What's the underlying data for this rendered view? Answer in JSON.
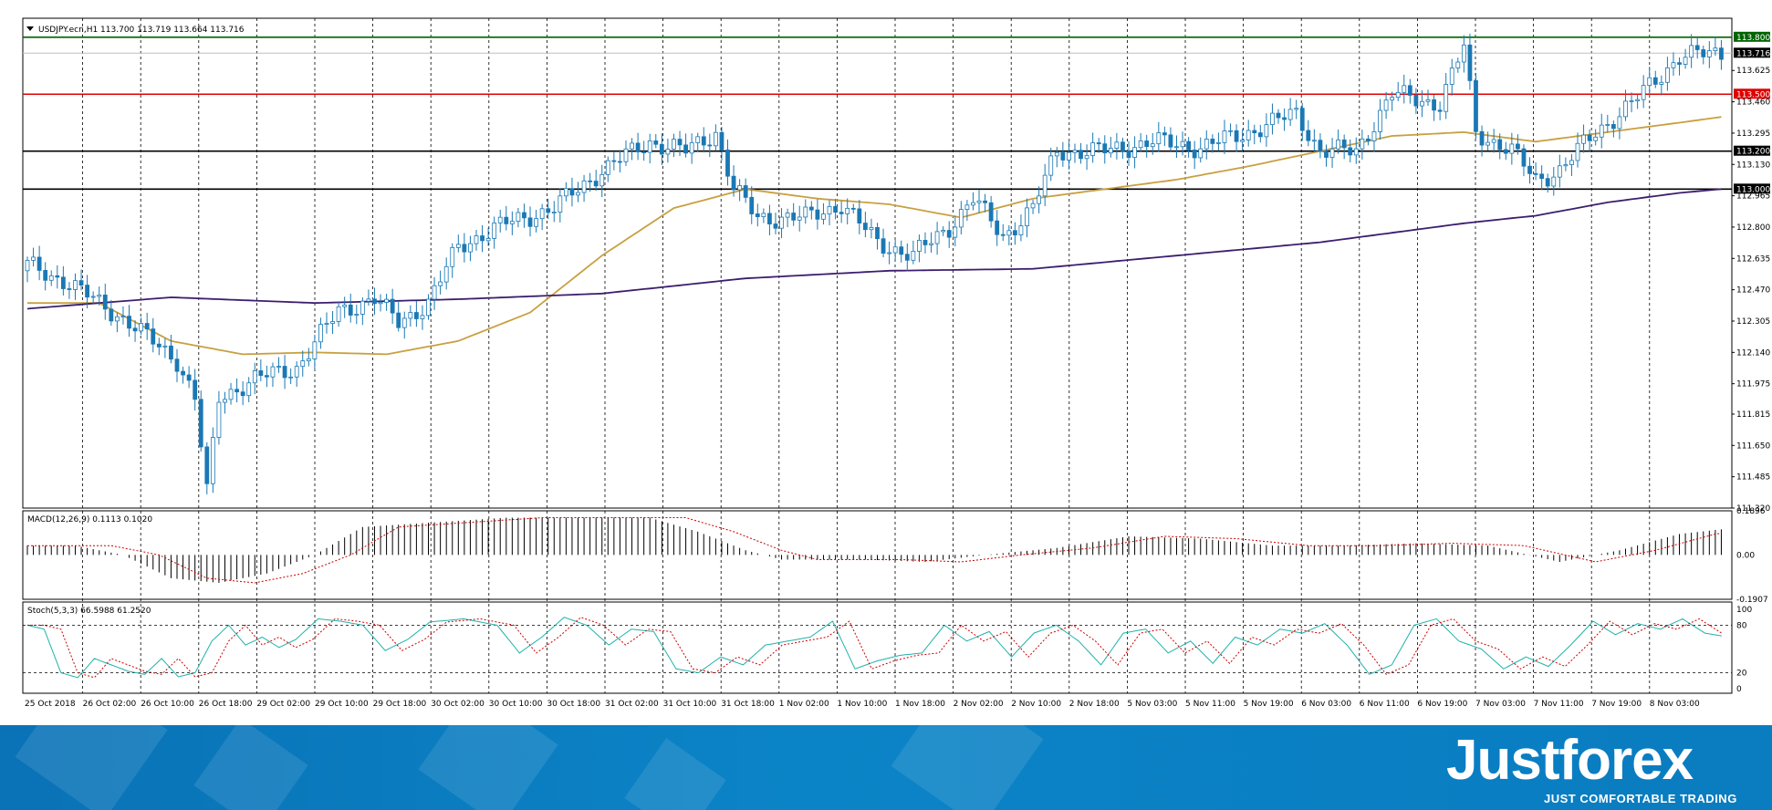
{
  "chart_data": [
    {
      "type": "candlestick",
      "title": "USDJPY.ecn,H1  113.700 113.719 113.664 113.716",
      "ylim": [
        111.32,
        113.9
      ],
      "price_ticks": [
        "113.625",
        "113.460",
        "113.295",
        "113.130",
        "112.965",
        "112.800",
        "112.635",
        "112.470",
        "112.305",
        "112.140",
        "111.975",
        "111.815",
        "111.650",
        "111.485",
        "111.320"
      ],
      "level_lines": [
        {
          "value": 113.8,
          "label": "113.800",
          "color": "#006400"
        },
        {
          "value": 113.716,
          "label": "113.716",
          "color": "#000000"
        },
        {
          "value": 113.5,
          "label": "113.500",
          "color": "#e00000"
        },
        {
          "value": 113.2,
          "label": "113.200",
          "color": "#000000"
        },
        {
          "value": 113.0,
          "label": "113.000",
          "color": "#000000"
        }
      ],
      "close_path": [
        [
          0,
          112.6
        ],
        [
          6,
          112.52
        ],
        [
          12,
          112.4
        ],
        [
          16,
          112.32
        ],
        [
          20,
          112.22
        ],
        [
          25,
          112.1
        ],
        [
          28,
          111.9
        ],
        [
          30,
          111.4
        ],
        [
          32,
          111.9
        ],
        [
          38,
          112.0
        ],
        [
          45,
          112.06
        ],
        [
          52,
          112.36
        ],
        [
          58,
          112.42
        ],
        [
          62,
          112.3
        ],
        [
          67,
          112.4
        ],
        [
          72,
          112.7
        ],
        [
          80,
          112.82
        ],
        [
          88,
          112.9
        ],
        [
          96,
          113.1
        ],
        [
          104,
          113.25
        ],
        [
          110,
          113.2
        ],
        [
          115,
          113.3
        ],
        [
          118,
          113.0
        ],
        [
          122,
          112.85
        ],
        [
          130,
          112.85
        ],
        [
          136,
          112.92
        ],
        [
          142,
          112.72
        ],
        [
          148,
          112.65
        ],
        [
          154,
          112.8
        ],
        [
          158,
          112.95
        ],
        [
          163,
          112.75
        ],
        [
          168,
          112.9
        ],
        [
          172,
          113.2
        ],
        [
          180,
          113.2
        ],
        [
          188,
          113.25
        ],
        [
          196,
          113.22
        ],
        [
          204,
          113.3
        ],
        [
          212,
          113.4
        ],
        [
          216,
          113.2
        ],
        [
          222,
          113.2
        ],
        [
          228,
          113.5
        ],
        [
          236,
          113.45
        ],
        [
          240,
          113.75
        ],
        [
          242,
          113.3
        ],
        [
          248,
          113.2
        ],
        [
          252,
          113.05
        ],
        [
          256,
          113.1
        ],
        [
          262,
          113.3
        ],
        [
          268,
          113.45
        ],
        [
          276,
          113.7
        ],
        [
          283,
          113.716
        ]
      ],
      "ma_fast": [
        [
          0,
          112.4
        ],
        [
          12,
          112.4
        ],
        [
          24,
          112.2
        ],
        [
          36,
          112.13
        ],
        [
          48,
          112.14
        ],
        [
          60,
          112.13
        ],
        [
          72,
          112.2
        ],
        [
          84,
          112.35
        ],
        [
          96,
          112.65
        ],
        [
          108,
          112.9
        ],
        [
          120,
          113.0
        ],
        [
          132,
          112.95
        ],
        [
          144,
          112.92
        ],
        [
          156,
          112.85
        ],
        [
          168,
          112.95
        ],
        [
          180,
          113.0
        ],
        [
          192,
          113.05
        ],
        [
          204,
          113.12
        ],
        [
          216,
          113.2
        ],
        [
          228,
          113.28
        ],
        [
          240,
          113.3
        ],
        [
          252,
          113.25
        ],
        [
          264,
          113.3
        ],
        [
          276,
          113.35
        ],
        [
          283,
          113.38
        ]
      ],
      "ma_slow": [
        [
          0,
          112.37
        ],
        [
          24,
          112.43
        ],
        [
          48,
          112.4
        ],
        [
          72,
          112.42
        ],
        [
          96,
          112.45
        ],
        [
          120,
          112.53
        ],
        [
          144,
          112.57
        ],
        [
          168,
          112.58
        ],
        [
          192,
          112.65
        ],
        [
          216,
          112.72
        ],
        [
          240,
          112.82
        ],
        [
          252,
          112.86
        ],
        [
          264,
          112.93
        ],
        [
          276,
          112.98
        ],
        [
          283,
          113.0
        ]
      ]
    },
    {
      "type": "bar",
      "title": "MACD(12,26,9) 0.1113 0.1020",
      "ylim": [
        -0.1907,
        0.1896
      ],
      "ticks": [
        "0.1896",
        "0.00",
        "-0.1907"
      ],
      "points": [
        [
          0,
          0.04
        ],
        [
          8,
          0.04
        ],
        [
          16,
          0.0
        ],
        [
          24,
          -0.1
        ],
        [
          32,
          -0.12
        ],
        [
          40,
          -0.08
        ],
        [
          48,
          0.0
        ],
        [
          56,
          0.12
        ],
        [
          68,
          0.14
        ],
        [
          80,
          0.16
        ],
        [
          96,
          0.16
        ],
        [
          104,
          0.16
        ],
        [
          112,
          0.1
        ],
        [
          120,
          0.02
        ],
        [
          126,
          -0.02
        ],
        [
          140,
          -0.02
        ],
        [
          150,
          -0.03
        ],
        [
          160,
          0.0
        ],
        [
          172,
          0.03
        ],
        [
          184,
          0.08
        ],
        [
          196,
          0.07
        ],
        [
          208,
          0.04
        ],
        [
          220,
          0.04
        ],
        [
          232,
          0.05
        ],
        [
          244,
          0.04
        ],
        [
          256,
          -0.03
        ],
        [
          266,
          0.02
        ],
        [
          276,
          0.09
        ],
        [
          283,
          0.11
        ]
      ]
    },
    {
      "type": "line",
      "title": "Stoch(5,3,3) 66.5988 61.2520",
      "ylim": [
        0,
        100
      ],
      "ticks": [
        "100",
        "80",
        "20",
        "0"
      ],
      "points": [
        [
          0,
          80
        ],
        [
          3,
          75
        ],
        [
          6,
          20
        ],
        [
          9,
          14
        ],
        [
          12,
          38
        ],
        [
          15,
          30
        ],
        [
          18,
          22
        ],
        [
          21,
          18
        ],
        [
          24,
          38
        ],
        [
          27,
          15
        ],
        [
          30,
          20
        ],
        [
          33,
          60
        ],
        [
          36,
          80
        ],
        [
          39,
          55
        ],
        [
          42,
          65
        ],
        [
          45,
          52
        ],
        [
          48,
          62
        ],
        [
          52,
          88
        ],
        [
          56,
          85
        ],
        [
          60,
          80
        ],
        [
          64,
          48
        ],
        [
          68,
          62
        ],
        [
          72,
          84
        ],
        [
          78,
          88
        ],
        [
          84,
          80
        ],
        [
          88,
          45
        ],
        [
          92,
          65
        ],
        [
          96,
          90
        ],
        [
          100,
          80
        ],
        [
          104,
          55
        ],
        [
          108,
          75
        ],
        [
          112,
          72
        ],
        [
          116,
          25
        ],
        [
          120,
          20
        ],
        [
          124,
          40
        ],
        [
          128,
          30
        ],
        [
          132,
          55
        ],
        [
          136,
          60
        ],
        [
          140,
          65
        ],
        [
          144,
          85
        ],
        [
          148,
          25
        ],
        [
          152,
          35
        ],
        [
          156,
          42
        ],
        [
          160,
          45
        ],
        [
          164,
          80
        ],
        [
          168,
          60
        ],
        [
          172,
          72
        ],
        [
          176,
          40
        ],
        [
          180,
          70
        ],
        [
          184,
          80
        ],
        [
          188,
          60
        ],
        [
          192,
          30
        ],
        [
          196,
          70
        ],
        [
          200,
          75
        ],
        [
          204,
          45
        ],
        [
          208,
          60
        ],
        [
          212,
          32
        ],
        [
          216,
          65
        ],
        [
          220,
          55
        ],
        [
          224,
          75
        ],
        [
          228,
          70
        ],
        [
          232,
          82
        ],
        [
          236,
          55
        ],
        [
          240,
          18
        ],
        [
          244,
          30
        ],
        [
          248,
          80
        ],
        [
          252,
          88
        ],
        [
          256,
          60
        ],
        [
          260,
          50
        ],
        [
          264,
          25
        ],
        [
          268,
          40
        ],
        [
          272,
          28
        ],
        [
          276,
          55
        ],
        [
          280,
          85
        ],
        [
          284,
          68
        ],
        [
          288,
          82
        ],
        [
          292,
          75
        ],
        [
          296,
          88
        ],
        [
          300,
          70
        ],
        [
          303,
          66.6
        ]
      ]
    }
  ],
  "x_labels": [
    "25 Oct 2018",
    "26 Oct 02:00",
    "26 Oct 10:00",
    "26 Oct 18:00",
    "29 Oct 02:00",
    "29 Oct 10:00",
    "29 Oct 18:00",
    "30 Oct 02:00",
    "30 Oct 10:00",
    "30 Oct 18:00",
    "31 Oct 02:00",
    "31 Oct 10:00",
    "31 Oct 18:00",
    "1 Nov 02:00",
    "1 Nov 10:00",
    "1 Nov 18:00",
    "2 Nov 02:00",
    "2 Nov 10:00",
    "2 Nov 18:00",
    "5 Nov 03:00",
    "5 Nov 11:00",
    "5 Nov 19:00",
    "6 Nov 03:00",
    "6 Nov 11:00",
    "6 Nov 19:00",
    "7 Nov 03:00",
    "7 Nov 11:00",
    "7 Nov 19:00",
    "8 Nov 03:00"
  ],
  "colors": {
    "bull": "#ffffff",
    "bear": "#1a78b4",
    "wick": "#1a78b4",
    "ma_fast": "#c8a040",
    "ma_slow": "#3c1e6e",
    "macd_signal": "#cc0000",
    "stoch_main": "#20b2aa",
    "stoch_signal": "#cc0000"
  },
  "banner": {
    "logo": "Justforex",
    "slogan": "JUST COMFORTABLE TRADING"
  }
}
